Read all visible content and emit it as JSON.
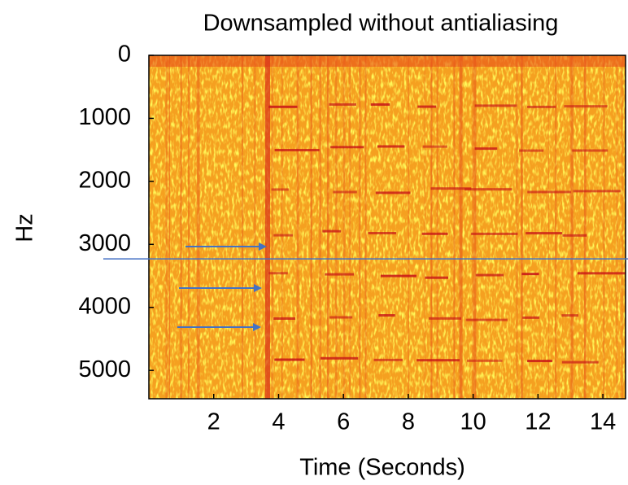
{
  "chart_data": {
    "type": "spectrogram",
    "title": "Downsampled without antialiasing",
    "xlabel": "Time (Seconds)",
    "ylabel": "Hz",
    "xlim": [
      0,
      14.7
    ],
    "xticks": [
      2,
      4,
      6,
      8,
      10,
      12,
      14
    ],
    "ylim": [
      5450,
      0
    ],
    "yticks": [
      0,
      1000,
      2000,
      3000,
      4000,
      5000
    ],
    "hlines": [
      3230
    ],
    "hline_color": "#4472c4"
  }
}
